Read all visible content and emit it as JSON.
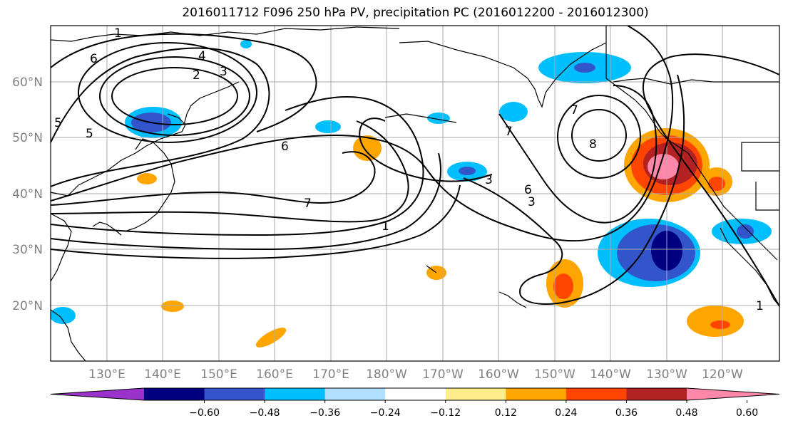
{
  "title": "2016011712 F096 250 hPa PV, precipitation PC (2016012200 - 2016012300)",
  "lat_labels": [
    "60°N",
    "50°N",
    "40°N",
    "30°N",
    "20°N"
  ],
  "lon_labels": [
    "130°E",
    "140°E",
    "150°E",
    "160°E",
    "170°E",
    "180°W",
    "170°W",
    "160°W",
    "150°W",
    "140°W",
    "130°W",
    "120°W"
  ],
  "colorbar": {
    "colors": [
      "#9933cc",
      "#000080",
      "#3355cc",
      "#00bfff",
      "#b0e0ff",
      "#ffffff",
      "#ffec8b",
      "#ffa500",
      "#ff4500",
      "#b22222",
      "#ff88aa"
    ],
    "tick_labels": [
      "−0.60",
      "−0.48",
      "−0.36",
      "−0.24",
      "−0.12",
      "0.12",
      "0.24",
      "0.36",
      "0.48",
      "0.60"
    ]
  },
  "contour_labels": [
    "1",
    "2",
    "3",
    "4",
    "5",
    "6",
    "7",
    "8"
  ],
  "colors": {
    "grid": "#aaaaaa",
    "contour": "#000000",
    "coast": "#000000"
  }
}
